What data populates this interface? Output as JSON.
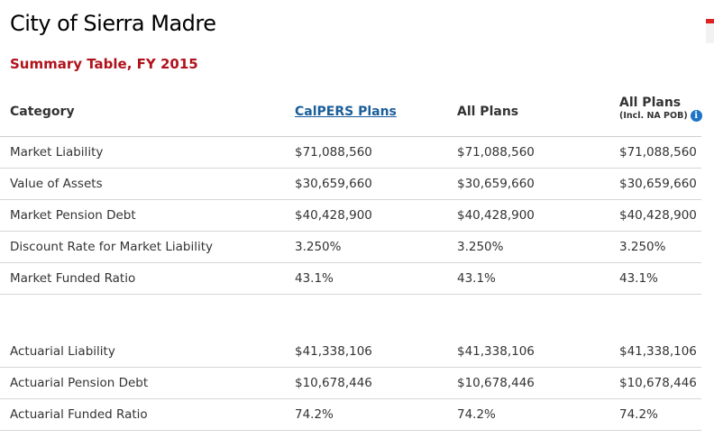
{
  "title": "City of Sierra Madre",
  "subtitle": "Summary Table, FY 2015",
  "icons": {
    "pdf": "pdf-icon",
    "info": "info-icon"
  },
  "colors": {
    "subtitle": "#b0121b",
    "link": "#1a5e9a"
  },
  "headers": {
    "category": "Category",
    "calpers": "CalPERS Plans",
    "all_plans": "All Plans",
    "all_plans_incl": "All Plans",
    "all_plans_incl_note": "(Incl. NA POB)"
  },
  "market_rows": [
    {
      "label": "Market Liability",
      "calpers": "$71,088,560",
      "all": "$71,088,560",
      "incl": "$71,088,560"
    },
    {
      "label": "Value of Assets",
      "calpers": "$30,659,660",
      "all": "$30,659,660",
      "incl": "$30,659,660"
    },
    {
      "label": "Market Pension Debt",
      "calpers": "$40,428,900",
      "all": "$40,428,900",
      "incl": "$40,428,900"
    },
    {
      "label": "Discount Rate for Market Liability",
      "calpers": "3.250%",
      "all": "3.250%",
      "incl": "3.250%"
    },
    {
      "label": "Market Funded Ratio",
      "calpers": "43.1%",
      "all": "43.1%",
      "incl": "43.1%"
    }
  ],
  "actuarial_rows": [
    {
      "label": "Actuarial Liability",
      "calpers": "$41,338,106",
      "all": "$41,338,106",
      "incl": "$41,338,106"
    },
    {
      "label": "Actuarial Pension Debt",
      "calpers": "$10,678,446",
      "all": "$10,678,446",
      "incl": "$10,678,446"
    },
    {
      "label": "Actuarial Funded Ratio",
      "calpers": "74.2%",
      "all": "74.2%",
      "incl": "74.2%"
    }
  ]
}
